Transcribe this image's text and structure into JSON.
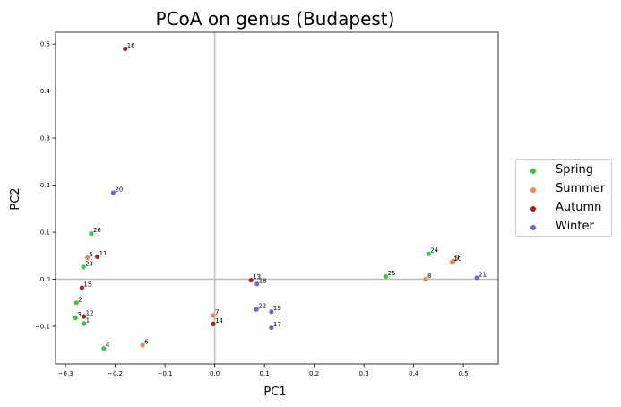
{
  "chart_data": {
    "type": "scatter",
    "title": "PCoA on genus (Budapest)",
    "xlabel": "PC1",
    "ylabel": "PC2",
    "xlim": [
      -0.32,
      0.57
    ],
    "ylim": [
      -0.18,
      0.525
    ],
    "xticks": [
      -0.3,
      -0.2,
      -0.1,
      0.0,
      0.1,
      0.2,
      0.3,
      0.4,
      0.5
    ],
    "xtick_labels": [
      "−0.3",
      "−0.2",
      "−0.1",
      "0.0",
      "0.1",
      "0.2",
      "0.3",
      "0.4",
      "0.5"
    ],
    "yticks": [
      -0.1,
      0.0,
      0.1,
      0.2,
      0.3,
      0.4,
      0.5
    ],
    "ytick_labels": [
      "−0.1",
      "0.0",
      "0.1",
      "0.2",
      "0.3",
      "0.4",
      "0.5"
    ],
    "grid": false,
    "reference_lines": {
      "x": 0,
      "y": 0,
      "color": "#bbbbbb"
    },
    "legend_position": "center-right-outside",
    "series": [
      {
        "name": "Spring",
        "color": "#33cc33",
        "points": [
          {
            "label": "26",
            "x": -0.248,
            "y": 0.097
          },
          {
            "label": "23",
            "x": -0.264,
            "y": 0.026
          },
          {
            "label": "2",
            "x": -0.278,
            "y": -0.05
          },
          {
            "label": "3",
            "x": -0.28,
            "y": -0.082
          },
          {
            "label": "1",
            "x": -0.263,
            "y": -0.094
          },
          {
            "label": "4",
            "x": -0.223,
            "y": -0.147
          },
          {
            "label": "25",
            "x": 0.344,
            "y": 0.006
          },
          {
            "label": "24",
            "x": 0.43,
            "y": 0.054
          }
        ]
      },
      {
        "name": "Summer",
        "color": "#ff7f50",
        "points": [
          {
            "label": "5",
            "x": -0.256,
            "y": 0.046
          },
          {
            "label": "6",
            "x": -0.145,
            "y": -0.14
          },
          {
            "label": "7",
            "x": -0.003,
            "y": -0.077
          },
          {
            "label": "8",
            "x": 0.424,
            "y": 0.0
          },
          {
            "label": "10",
            "x": 0.477,
            "y": 0.036
          },
          {
            "label": "9",
            "x": 0.48,
            "y": 0.039
          }
        ]
      },
      {
        "name": "Autumn",
        "color": "#b31a1a",
        "points": [
          {
            "label": "16",
            "x": -0.18,
            "y": 0.49
          },
          {
            "label": "11",
            "x": -0.236,
            "y": 0.048
          },
          {
            "label": "15",
            "x": -0.267,
            "y": -0.018
          },
          {
            "label": "12",
            "x": -0.263,
            "y": -0.079
          },
          {
            "label": "14",
            "x": -0.003,
            "y": -0.095
          },
          {
            "label": "13",
            "x": 0.073,
            "y": -0.002
          }
        ]
      },
      {
        "name": "Winter",
        "color": "#7a5fe0",
        "points": [
          {
            "label": "20",
            "x": -0.204,
            "y": 0.184
          },
          {
            "label": "18",
            "x": 0.085,
            "y": -0.01
          },
          {
            "label": "22",
            "x": 0.084,
            "y": -0.064
          },
          {
            "label": "19",
            "x": 0.114,
            "y": -0.069
          },
          {
            "label": "17",
            "x": 0.114,
            "y": -0.103
          },
          {
            "label": "21",
            "x": 0.527,
            "y": 0.003
          }
        ]
      }
    ]
  }
}
